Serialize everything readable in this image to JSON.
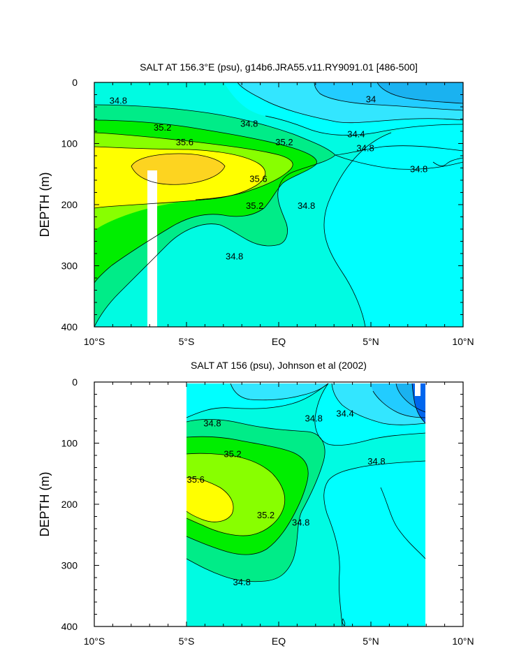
{
  "chart_data": [
    {
      "type": "heatmap",
      "title": "SALT AT 156.3°E (psu), g14b6.JRA55.v11.RY9091.01 [486-500]",
      "ylabel": "DEPTH (m)",
      "xlabel": "",
      "xlim": [
        -10,
        10
      ],
      "ylim": [
        400,
        0
      ],
      "x_ticks": [
        {
          "value": -10,
          "label": "10°S"
        },
        {
          "value": -5,
          "label": "5°S"
        },
        {
          "value": 0,
          "label": "EQ"
        },
        {
          "value": 5,
          "label": "5°N"
        },
        {
          "value": 10,
          "label": "10°N"
        }
      ],
      "y_ticks": [
        {
          "value": 0,
          "label": "0"
        },
        {
          "value": 100,
          "label": "100"
        },
        {
          "value": 200,
          "label": "200"
        },
        {
          "value": 300,
          "label": "300"
        },
        {
          "value": 400,
          "label": "400"
        }
      ],
      "contour_labels": [
        {
          "text": "34.8",
          "x": -8.7,
          "depth": 30
        },
        {
          "text": "35.2",
          "x": -6.3,
          "depth": 74
        },
        {
          "text": "34.8",
          "x": -1.6,
          "depth": 68
        },
        {
          "text": "35.6",
          "x": -5.1,
          "depth": 98
        },
        {
          "text": "35.2",
          "x": 0.3,
          "depth": 98
        },
        {
          "text": "34.4",
          "x": 4.2,
          "depth": 85
        },
        {
          "text": "34.8",
          "x": 4.7,
          "depth": 108
        },
        {
          "text": "34",
          "x": 5.0,
          "depth": 28
        },
        {
          "text": "34.8",
          "x": 7.6,
          "depth": 142
        },
        {
          "text": "35.6",
          "x": -1.1,
          "depth": 158
        },
        {
          "text": "35.2",
          "x": -1.3,
          "depth": 202
        },
        {
          "text": "34.8",
          "x": 1.5,
          "depth": 202
        },
        {
          "text": "34.8",
          "x": -2.4,
          "depth": 285
        }
      ]
    },
    {
      "type": "heatmap",
      "title": "SALT AT 156 (psu), Johnson et al (2002)",
      "ylabel": "DEPTH (m)",
      "xlabel": "",
      "xlim": [
        -10,
        10
      ],
      "ylim": [
        400,
        0
      ],
      "x_ticks": [
        {
          "value": -10,
          "label": "10°S"
        },
        {
          "value": -5,
          "label": "5°S"
        },
        {
          "value": 0,
          "label": "EQ"
        },
        {
          "value": 5,
          "label": "5°N"
        },
        {
          "value": 10,
          "label": "10°N"
        }
      ],
      "y_ticks": [
        {
          "value": 0,
          "label": "0"
        },
        {
          "value": 100,
          "label": "100"
        },
        {
          "value": 200,
          "label": "200"
        },
        {
          "value": 300,
          "label": "300"
        },
        {
          "value": 400,
          "label": "400"
        }
      ],
      "contour_labels": [
        {
          "text": "34.8",
          "x": -3.6,
          "depth": 68
        },
        {
          "text": "34.8",
          "x": 1.9,
          "depth": 60
        },
        {
          "text": "34.4",
          "x": 3.6,
          "depth": 52
        },
        {
          "text": "35.2",
          "x": -2.5,
          "depth": 118
        },
        {
          "text": "34.8",
          "x": 5.3,
          "depth": 130
        },
        {
          "text": "35.6",
          "x": -4.5,
          "depth": 160
        },
        {
          "text": "35.2",
          "x": -0.7,
          "depth": 218
        },
        {
          "text": "34.8",
          "x": 1.2,
          "depth": 230
        },
        {
          "text": "34.8",
          "x": -2.0,
          "depth": 328
        }
      ]
    }
  ]
}
